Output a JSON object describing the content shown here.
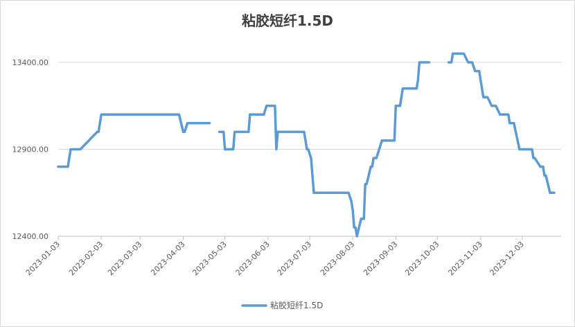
{
  "chart_data": {
    "type": "line",
    "title": "粘胶短纤1.5D",
    "xlabel": "",
    "ylabel": "",
    "ylim": [
      12400,
      13400
    ],
    "y_ticks": [
      "12400.00",
      "12900.00",
      "13400.00"
    ],
    "y_tick_values": [
      12400,
      12900,
      13400
    ],
    "x_ticks": [
      "2023-01-03",
      "2023-02-03",
      "2023-03-03",
      "2023-04-03",
      "2023-05-03",
      "2023-06-03",
      "2023-07-03",
      "2023-08-03",
      "2023-09-03",
      "2023-10-03",
      "2023-11-03",
      "2023-12-03"
    ],
    "x_range": [
      "2023-01-03",
      "2023-12-31"
    ],
    "grid": "horizontal",
    "legend": "bottom",
    "color": "#5B9BD5",
    "series": [
      {
        "name": "粘胶短纤1.5D",
        "segments": [
          [
            [
              "2023-01-03",
              12800
            ],
            [
              "2023-01-10",
              12800
            ],
            [
              "2023-01-12",
              12900
            ],
            [
              "2023-01-19",
              12900
            ],
            [
              "2023-01-31",
              13000
            ],
            [
              "2023-02-01",
              13000
            ],
            [
              "2023-02-03",
              13100
            ],
            [
              "2023-03-31",
              13100
            ],
            [
              "2023-04-03",
              13000
            ],
            [
              "2023-04-04",
              13000
            ],
            [
              "2023-04-06",
              13050
            ],
            [
              "2023-04-22",
              13050
            ]
          ],
          [
            [
              "2023-04-29",
              13000
            ],
            [
              "2023-05-02",
              13000
            ],
            [
              "2023-05-03",
              12900
            ],
            [
              "2023-05-09",
              12900
            ],
            [
              "2023-05-10",
              13000
            ],
            [
              "2023-05-20",
              13000
            ],
            [
              "2023-05-21",
              13100
            ],
            [
              "2023-05-31",
              13100
            ],
            [
              "2023-06-02",
              13150
            ],
            [
              "2023-06-08",
              13150
            ],
            [
              "2023-06-09",
              12900
            ],
            [
              "2023-06-10",
              13000
            ],
            [
              "2023-06-29",
              13000
            ],
            [
              "2023-07-01",
              12900
            ],
            [
              "2023-07-02",
              12900
            ],
            [
              "2023-07-04",
              12850
            ],
            [
              "2023-07-06",
              12650
            ],
            [
              "2023-07-31",
              12650
            ],
            [
              "2023-08-02",
              12600
            ],
            [
              "2023-08-03",
              12550
            ],
            [
              "2023-08-04",
              12450
            ],
            [
              "2023-08-05",
              12450
            ],
            [
              "2023-08-06",
              12400
            ],
            [
              "2023-08-09",
              12500
            ],
            [
              "2023-08-11",
              12500
            ],
            [
              "2023-08-12",
              12700
            ],
            [
              "2023-08-13",
              12700
            ],
            [
              "2023-08-16",
              12800
            ],
            [
              "2023-08-17",
              12800
            ],
            [
              "2023-08-18",
              12850
            ],
            [
              "2023-08-20",
              12850
            ],
            [
              "2023-08-24",
              12950
            ],
            [
              "2023-09-02",
              12950
            ],
            [
              "2023-09-03",
              13150
            ],
            [
              "2023-09-06",
              13150
            ],
            [
              "2023-09-08",
              13250
            ],
            [
              "2023-09-18",
              13250
            ],
            [
              "2023-09-19",
              13300
            ],
            [
              "2023-09-20",
              13400
            ],
            [
              "2023-09-27",
              13400
            ]
          ],
          [
            [
              "2023-10-11",
              13400
            ],
            [
              "2023-10-13",
              13400
            ],
            [
              "2023-10-14",
              13450
            ],
            [
              "2023-10-22",
              13450
            ],
            [
              "2023-10-25",
              13400
            ],
            [
              "2023-10-28",
              13400
            ],
            [
              "2023-10-30",
              13350
            ],
            [
              "2023-11-02",
              13350
            ],
            [
              "2023-11-05",
              13200
            ],
            [
              "2023-11-08",
              13200
            ],
            [
              "2023-11-11",
              13150
            ],
            [
              "2023-11-14",
              13150
            ],
            [
              "2023-11-17",
              13100
            ],
            [
              "2023-11-23",
              13100
            ],
            [
              "2023-11-24",
              13050
            ],
            [
              "2023-11-27",
              13050
            ],
            [
              "2023-12-01",
              12900
            ],
            [
              "2023-12-10",
              12900
            ],
            [
              "2023-12-11",
              12850
            ],
            [
              "2023-12-12",
              12850
            ],
            [
              "2023-12-16",
              12800
            ],
            [
              "2023-12-18",
              12800
            ],
            [
              "2023-12-19",
              12750
            ],
            [
              "2023-12-20",
              12750
            ],
            [
              "2023-12-23",
              12650
            ],
            [
              "2023-12-26",
              12650
            ]
          ]
        ]
      }
    ]
  }
}
